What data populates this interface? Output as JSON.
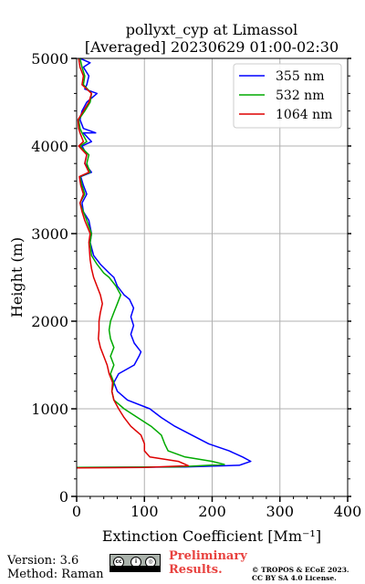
{
  "chart_data": {
    "type": "line",
    "title": "pollyxt_cyp at Limassol",
    "subtitle": "[Averaged] 20230629 01:00-02:30",
    "xlabel": "Extinction Coefficient [Mm⁻¹]",
    "ylabel": "Height (m)",
    "xlim": [
      0,
      400
    ],
    "ylim": [
      0,
      5000
    ],
    "xticks": [
      0,
      100,
      200,
      300,
      400
    ],
    "yticks": [
      0,
      1000,
      2000,
      3000,
      4000,
      5000
    ],
    "grid": true,
    "legend_position": "top-right",
    "series": [
      {
        "name": "355 nm",
        "color": "#0000ff",
        "points": [
          [
            0,
            330
          ],
          [
            160,
            335
          ],
          [
            240,
            355
          ],
          [
            257,
            400
          ],
          [
            245,
            450
          ],
          [
            225,
            520
          ],
          [
            195,
            600
          ],
          [
            170,
            700
          ],
          [
            145,
            800
          ],
          [
            125,
            900
          ],
          [
            108,
            1000
          ],
          [
            75,
            1100
          ],
          [
            60,
            1200
          ],
          [
            55,
            1300
          ],
          [
            62,
            1400
          ],
          [
            85,
            1500
          ],
          [
            92,
            1600
          ],
          [
            95,
            1650
          ],
          [
            85,
            1750
          ],
          [
            80,
            1850
          ],
          [
            84,
            1950
          ],
          [
            80,
            2050
          ],
          [
            84,
            2150
          ],
          [
            78,
            2250
          ],
          [
            70,
            2300
          ],
          [
            60,
            2400
          ],
          [
            55,
            2500
          ],
          [
            48,
            2550
          ],
          [
            35,
            2650
          ],
          [
            25,
            2750
          ],
          [
            20,
            2900
          ],
          [
            22,
            3000
          ],
          [
            18,
            3150
          ],
          [
            10,
            3250
          ],
          [
            8,
            3350
          ],
          [
            15,
            3450
          ],
          [
            10,
            3550
          ],
          [
            6,
            3650
          ],
          [
            22,
            3700
          ],
          [
            12,
            3800
          ],
          [
            15,
            3900
          ],
          [
            8,
            4000
          ],
          [
            22,
            4050
          ],
          [
            10,
            4150
          ],
          [
            28,
            4150
          ],
          [
            10,
            4200
          ],
          [
            5,
            4300
          ],
          [
            8,
            4400
          ],
          [
            15,
            4500
          ],
          [
            30,
            4600
          ],
          [
            12,
            4650
          ],
          [
            15,
            4700
          ],
          [
            18,
            4800
          ],
          [
            10,
            4900
          ],
          [
            20,
            4950
          ],
          [
            5,
            5000
          ]
        ]
      },
      {
        "name": "532 nm",
        "color": "#00aa00",
        "points": [
          [
            0,
            330
          ],
          [
            150,
            338
          ],
          [
            218,
            365
          ],
          [
            200,
            400
          ],
          [
            160,
            450
          ],
          [
            135,
            520
          ],
          [
            130,
            600
          ],
          [
            125,
            700
          ],
          [
            110,
            800
          ],
          [
            90,
            900
          ],
          [
            70,
            1000
          ],
          [
            55,
            1100
          ],
          [
            52,
            1200
          ],
          [
            55,
            1300
          ],
          [
            50,
            1400
          ],
          [
            55,
            1500
          ],
          [
            50,
            1600
          ],
          [
            55,
            1700
          ],
          [
            50,
            1800
          ],
          [
            48,
            1900
          ],
          [
            50,
            2000
          ],
          [
            55,
            2100
          ],
          [
            60,
            2200
          ],
          [
            65,
            2300
          ],
          [
            58,
            2400
          ],
          [
            48,
            2500
          ],
          [
            40,
            2550
          ],
          [
            30,
            2650
          ],
          [
            22,
            2750
          ],
          [
            20,
            2900
          ],
          [
            22,
            3000
          ],
          [
            15,
            3150
          ],
          [
            10,
            3250
          ],
          [
            5,
            3350
          ],
          [
            12,
            3450
          ],
          [
            8,
            3550
          ],
          [
            5,
            3650
          ],
          [
            20,
            3700
          ],
          [
            15,
            3800
          ],
          [
            18,
            3900
          ],
          [
            5,
            4000
          ],
          [
            15,
            4050
          ],
          [
            8,
            4150
          ],
          [
            5,
            4200
          ],
          [
            3,
            4300
          ],
          [
            12,
            4400
          ],
          [
            20,
            4500
          ],
          [
            22,
            4600
          ],
          [
            10,
            4700
          ],
          [
            12,
            4800
          ],
          [
            8,
            4900
          ],
          [
            5,
            5000
          ]
        ]
      },
      {
        "name": "1064 nm",
        "color": "#dd0000",
        "points": [
          [
            0,
            325
          ],
          [
            100,
            330
          ],
          [
            165,
            350
          ],
          [
            150,
            400
          ],
          [
            108,
            450
          ],
          [
            100,
            520
          ],
          [
            100,
            600
          ],
          [
            95,
            700
          ],
          [
            80,
            800
          ],
          [
            70,
            900
          ],
          [
            62,
            1000
          ],
          [
            55,
            1100
          ],
          [
            52,
            1200
          ],
          [
            53,
            1300
          ],
          [
            48,
            1400
          ],
          [
            45,
            1500
          ],
          [
            40,
            1600
          ],
          [
            35,
            1700
          ],
          [
            32,
            1800
          ],
          [
            33,
            1900
          ],
          [
            33,
            2000
          ],
          [
            35,
            2100
          ],
          [
            38,
            2200
          ],
          [
            35,
            2300
          ],
          [
            30,
            2400
          ],
          [
            25,
            2500
          ],
          [
            22,
            2600
          ],
          [
            20,
            2700
          ],
          [
            18,
            2900
          ],
          [
            20,
            3000
          ],
          [
            12,
            3150
          ],
          [
            8,
            3250
          ],
          [
            5,
            3350
          ],
          [
            10,
            3450
          ],
          [
            6,
            3550
          ],
          [
            4,
            3650
          ],
          [
            18,
            3700
          ],
          [
            12,
            3800
          ],
          [
            15,
            3900
          ],
          [
            3,
            4000
          ],
          [
            10,
            4050
          ],
          [
            5,
            4150
          ],
          [
            3,
            4200
          ],
          [
            2,
            4300
          ],
          [
            10,
            4400
          ],
          [
            18,
            4500
          ],
          [
            22,
            4600
          ],
          [
            8,
            4700
          ],
          [
            10,
            4800
          ],
          [
            5,
            4900
          ],
          [
            3,
            5000
          ]
        ]
      }
    ]
  },
  "footer": {
    "version": "Version: 3.6",
    "method": "Method: Raman",
    "preliminary_line1": "Preliminary",
    "preliminary_line2": "Results.",
    "copyright_line1": "© TROPOS & ECoE 2023.",
    "copyright_line2": "CC BY SA 4.0 License.",
    "license_badge_icon": "cc-by-sa-badge"
  }
}
